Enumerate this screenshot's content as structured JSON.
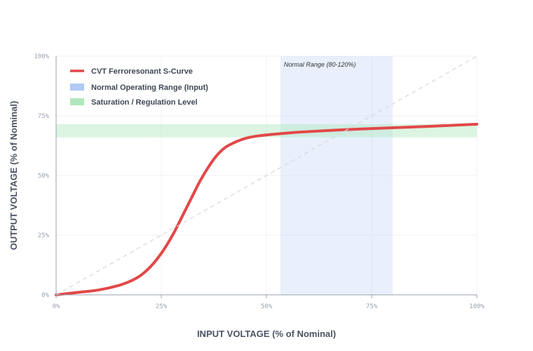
{
  "chart_data": {
    "type": "line",
    "xlabel": "INPUT VOLTAGE (% of Nominal)",
    "ylabel": "OUTPUT VOLTAGE (%  of Nominal)",
    "xlim": [
      0,
      100
    ],
    "ylim": [
      0,
      100
    ],
    "x_ticks": [
      "0%",
      "25%",
      "50%",
      "75%",
      "100%"
    ],
    "y_ticks": [
      "0%",
      "25%",
      "50%",
      "75%",
      "100%"
    ],
    "grid": true,
    "legend_placement": "top-left",
    "series": [
      {
        "name": "CVT Ferroresonant S-Curve",
        "color": "#e24848",
        "x": [
          0,
          5,
          10,
          15,
          18,
          20,
          22,
          24,
          26,
          28,
          30,
          32,
          34,
          36,
          38,
          40,
          42,
          44,
          46,
          48,
          50,
          55,
          60,
          70,
          80,
          90,
          100
        ],
        "y": [
          0,
          1,
          2,
          4,
          6,
          8,
          11,
          15,
          20,
          26,
          33,
          40,
          47,
          53,
          58,
          61.5,
          63.5,
          65,
          66,
          66.6,
          67,
          67.8,
          68.4,
          69.3,
          70,
          70.7,
          71.5
        ]
      },
      {
        "name": "",
        "style": "dashed",
        "color": "#d3d7dd",
        "x": [
          0,
          100
        ],
        "y": [
          0,
          100
        ]
      }
    ],
    "bands": [
      {
        "name": "Normal Operating Range (Input)",
        "axis": "x",
        "range": [
          53.3,
          80
        ],
        "color": "#a9c4f5",
        "annotation": "Normal Range (80-120%)"
      },
      {
        "name": "Saturation / Regulation Level",
        "axis": "y",
        "range": [
          66,
          71.5
        ],
        "color": "#a6e6b6"
      }
    ]
  }
}
